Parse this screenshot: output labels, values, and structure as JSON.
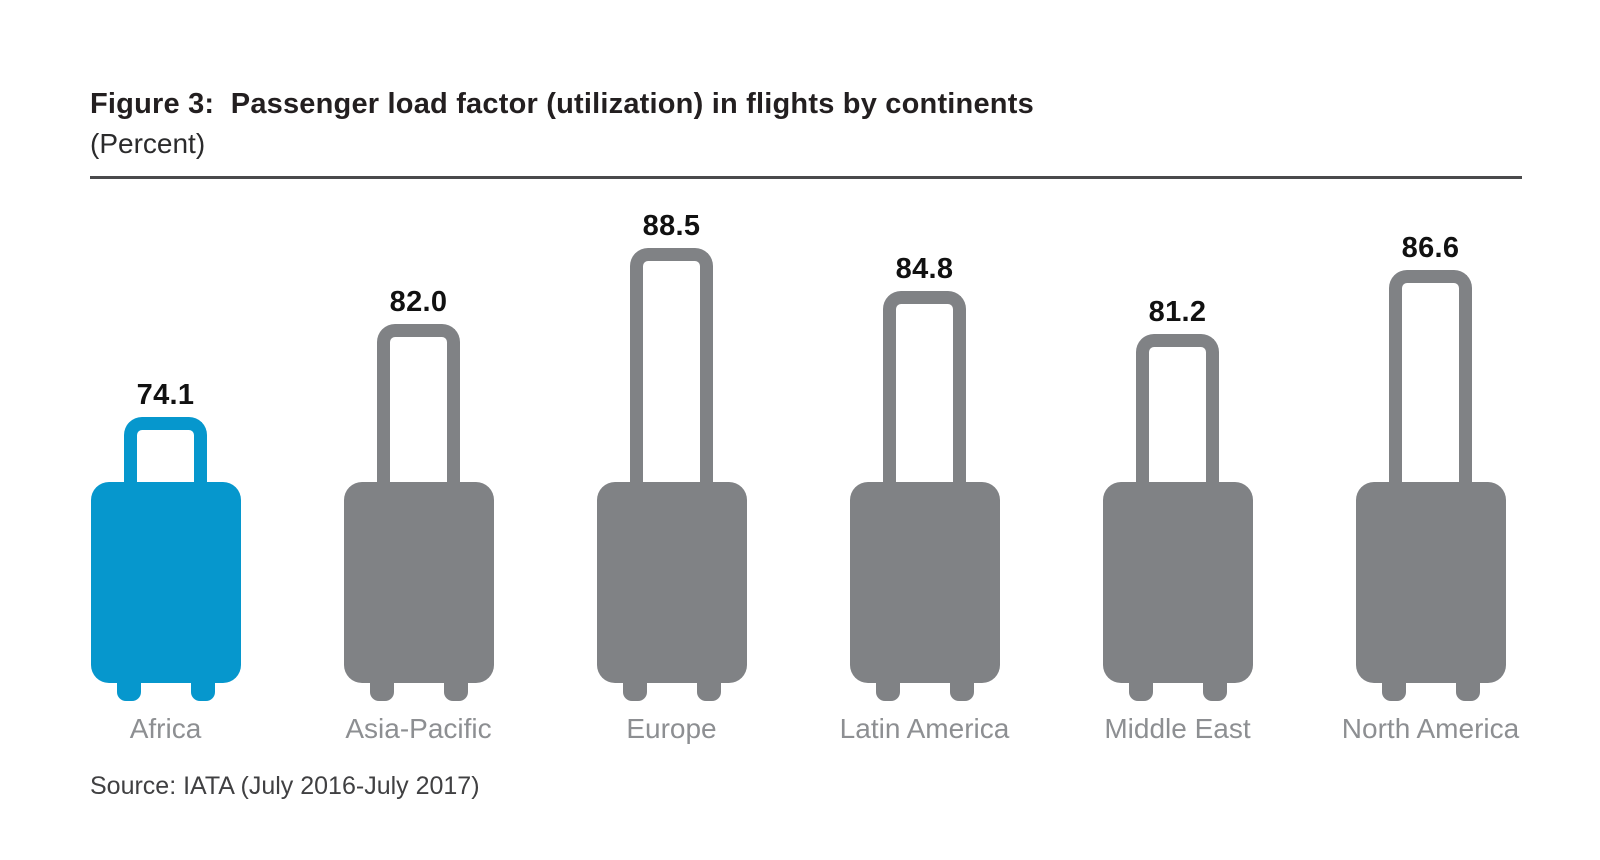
{
  "figure": {
    "title": "Figure 3:  Passenger load factor (utilization) in flights by continents",
    "subtitle": "(Percent)",
    "source": "Source: IATA (July 2016-July 2017)"
  },
  "colors": {
    "highlight": "#0697cd",
    "default": "#808285",
    "value_label": "#111111",
    "category_label": "#8d8f92",
    "rule": "#4a4a4c"
  },
  "chart_data": {
    "type": "bar",
    "variant": "pictogram-suitcase-handle-height",
    "title": "Passenger load factor (utilization) in flights by continents",
    "unit": "Percent",
    "categories": [
      "Africa",
      "Asia-Pacific",
      "Europe",
      "Latin America",
      "Middle East",
      "North America"
    ],
    "values": [
      74.1,
      82.0,
      88.5,
      84.8,
      81.2,
      86.6
    ],
    "value_labels": [
      "74.1",
      "82.0",
      "88.5",
      "84.8",
      "81.2",
      "86.6"
    ],
    "highlighted_category": "Africa",
    "legend": "none",
    "grid": "off",
    "encoding": "height of suitcase handle is proportional to value; value printed above each icon",
    "source": "IATA (July 2016-July 2017)"
  }
}
